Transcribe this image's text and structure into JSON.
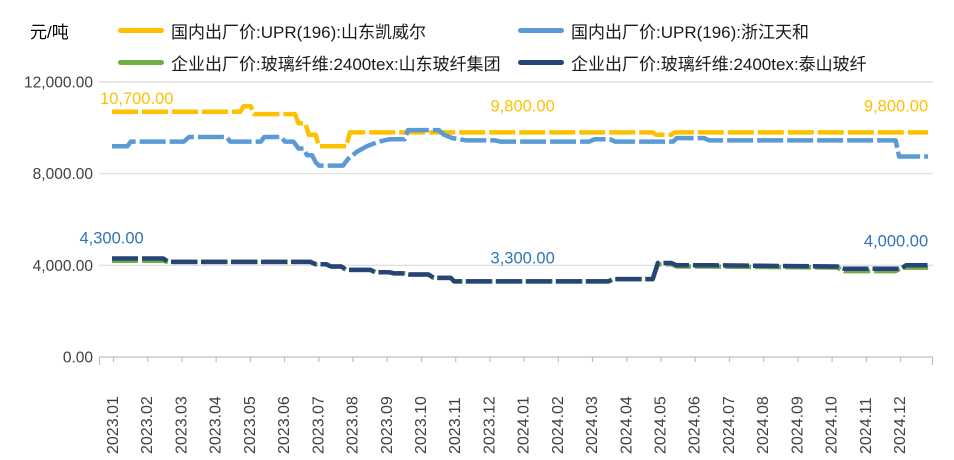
{
  "unit_label": "元/吨",
  "chart_data": {
    "type": "line",
    "title": "",
    "ylabel": "元/吨",
    "ylim": [
      0,
      12000
    ],
    "grid": "horizontal",
    "legend_position": "top",
    "x_unit": "months, 0 = 2023.01 … 23 = 2024.12",
    "x_categories": [
      "2023.01",
      "2023.02",
      "2023.03",
      "2023.04",
      "2023.05",
      "2023.06",
      "2023.07",
      "2023.08",
      "2023.09",
      "2023.10",
      "2023.11",
      "2023.12",
      "2024.01",
      "2024.02",
      "2024.03",
      "2024.04",
      "2024.05",
      "2024.06",
      "2024.07",
      "2024.08",
      "2024.09",
      "2024.10",
      "2024.11",
      "2024.12"
    ],
    "y_ticks": [
      {
        "label": "12,000.00",
        "value": 12000
      },
      {
        "label": "8,000.00",
        "value": 8000
      },
      {
        "label": "4,000.00",
        "value": 4000
      },
      {
        "label": "0.00",
        "value": 0
      }
    ],
    "series": [
      {
        "name": "国内出厂价:UPR(196):山东凯威尔",
        "color": "#FFC000",
        "points": [
          [
            0,
            10700
          ],
          [
            3.75,
            10700
          ],
          [
            3.85,
            10950
          ],
          [
            4.05,
            10950
          ],
          [
            4.15,
            10600
          ],
          [
            5.35,
            10600
          ],
          [
            5.45,
            10200
          ],
          [
            5.65,
            10200
          ],
          [
            5.75,
            9700
          ],
          [
            5.95,
            9700
          ],
          [
            6.05,
            9200
          ],
          [
            6.85,
            9200
          ],
          [
            6.95,
            9800
          ],
          [
            15.8,
            9800
          ],
          [
            15.9,
            9700
          ],
          [
            16.35,
            9700
          ],
          [
            16.45,
            9800
          ],
          [
            23.85,
            9800
          ]
        ]
      },
      {
        "name": "国内出厂价:UPR(196):浙江天和",
        "color": "#5B9BD5",
        "points": [
          [
            0,
            9200
          ],
          [
            0.45,
            9200
          ],
          [
            0.55,
            9400
          ],
          [
            2.1,
            9400
          ],
          [
            2.25,
            9600
          ],
          [
            3.35,
            9600
          ],
          [
            3.45,
            9400
          ],
          [
            4.35,
            9400
          ],
          [
            4.45,
            9600
          ],
          [
            4.95,
            9600
          ],
          [
            5.05,
            9400
          ],
          [
            5.3,
            9400
          ],
          [
            5.45,
            9100
          ],
          [
            5.6,
            9100
          ],
          [
            5.7,
            8800
          ],
          [
            5.85,
            8800
          ],
          [
            5.95,
            8500
          ],
          [
            6.05,
            8350
          ],
          [
            6.75,
            8350
          ],
          [
            6.9,
            8650
          ],
          [
            7.15,
            8950
          ],
          [
            7.45,
            9200
          ],
          [
            7.8,
            9400
          ],
          [
            8.1,
            9500
          ],
          [
            8.55,
            9500
          ],
          [
            8.65,
            9900
          ],
          [
            9.55,
            9900
          ],
          [
            9.7,
            9700
          ],
          [
            9.95,
            9550
          ],
          [
            10.35,
            9450
          ],
          [
            11.2,
            9450
          ],
          [
            11.35,
            9400
          ],
          [
            13.95,
            9400
          ],
          [
            14.1,
            9500
          ],
          [
            14.55,
            9500
          ],
          [
            14.7,
            9400
          ],
          [
            16.4,
            9400
          ],
          [
            16.5,
            9550
          ],
          [
            17.3,
            9550
          ],
          [
            17.45,
            9450
          ],
          [
            22.9,
            9450
          ],
          [
            23.0,
            8750
          ],
          [
            23.85,
            8750
          ]
        ]
      },
      {
        "name": "企业出厂价:玻璃纤维:2400tex:山东玻纤集团",
        "color": "#70AD47",
        "points": [
          [
            0,
            4200
          ],
          [
            1.5,
            4200
          ],
          [
            1.65,
            4150
          ],
          [
            5.8,
            4150
          ],
          [
            5.95,
            4050
          ],
          [
            6.25,
            4050
          ],
          [
            6.4,
            3950
          ],
          [
            6.7,
            3950
          ],
          [
            6.85,
            3800
          ],
          [
            7.55,
            3800
          ],
          [
            7.7,
            3700
          ],
          [
            8.1,
            3700
          ],
          [
            8.25,
            3650
          ],
          [
            8.55,
            3650
          ],
          [
            8.7,
            3600
          ],
          [
            9.25,
            3600
          ],
          [
            9.4,
            3450
          ],
          [
            9.9,
            3450
          ],
          [
            10.0,
            3300
          ],
          [
            14.5,
            3300
          ],
          [
            14.65,
            3400
          ],
          [
            15.8,
            3400
          ],
          [
            15.95,
            4050
          ],
          [
            16.35,
            4050
          ],
          [
            16.5,
            3950
          ],
          [
            17.5,
            3950
          ],
          [
            21.2,
            3900
          ],
          [
            21.4,
            3750
          ],
          [
            22.9,
            3750
          ],
          [
            23.1,
            3900
          ],
          [
            23.85,
            3900
          ]
        ]
      },
      {
        "name": "企业出厂价:玻璃纤维:2400tex:泰山玻纤",
        "color": "#264478",
        "points": [
          [
            0,
            4300
          ],
          [
            1.5,
            4300
          ],
          [
            1.65,
            4150
          ],
          [
            5.8,
            4150
          ],
          [
            5.95,
            4050
          ],
          [
            6.25,
            4050
          ],
          [
            6.4,
            3950
          ],
          [
            6.7,
            3950
          ],
          [
            6.85,
            3800
          ],
          [
            7.55,
            3800
          ],
          [
            7.7,
            3700
          ],
          [
            8.1,
            3700
          ],
          [
            8.25,
            3650
          ],
          [
            8.55,
            3650
          ],
          [
            8.7,
            3600
          ],
          [
            9.25,
            3600
          ],
          [
            9.4,
            3450
          ],
          [
            9.9,
            3450
          ],
          [
            10.0,
            3300
          ],
          [
            14.5,
            3300
          ],
          [
            14.65,
            3400
          ],
          [
            15.8,
            3400
          ],
          [
            15.95,
            4100
          ],
          [
            16.35,
            4100
          ],
          [
            16.5,
            4000
          ],
          [
            17.5,
            4000
          ],
          [
            21.2,
            3950
          ],
          [
            21.4,
            3850
          ],
          [
            23.05,
            3850
          ],
          [
            23.2,
            4000
          ],
          [
            23.85,
            4000
          ]
        ]
      }
    ],
    "data_labels": [
      {
        "text": "10,700.00",
        "color": "#FFC000",
        "month": -0.35,
        "value": 10700,
        "dy": -8,
        "anchor": "start"
      },
      {
        "text": "9,800.00",
        "color": "#FFC000",
        "month": 12.0,
        "value": 9800,
        "dy": -21,
        "anchor": "middle"
      },
      {
        "text": "9,800.00",
        "color": "#FFC000",
        "month": 23.85,
        "value": 9800,
        "dy": -21,
        "anchor": "end"
      },
      {
        "text": "4,300.00",
        "color": "#2E75B6",
        "month": -0.95,
        "value": 4300,
        "dy": -15,
        "anchor": "start"
      },
      {
        "text": "3,300.00",
        "color": "#2E75B6",
        "month": 12.0,
        "value": 3300,
        "dy": -18,
        "anchor": "middle"
      },
      {
        "text": "4,000.00",
        "color": "#2E75B6",
        "month": 23.85,
        "value": 4000,
        "dy": -19,
        "anchor": "end"
      }
    ],
    "style_colors": {
      "gridline": "#D9D9D9",
      "axis_line": "#BFBFBF",
      "tick_text": "#404040"
    }
  }
}
